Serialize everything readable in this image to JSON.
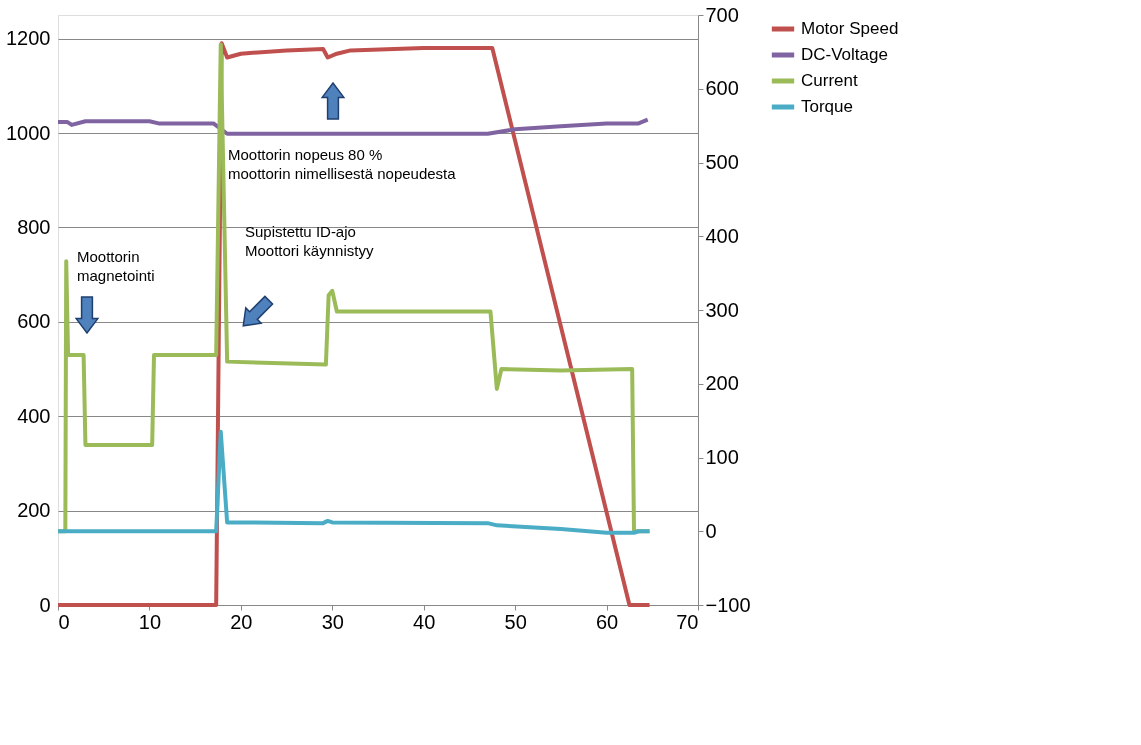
{
  "chart_data": {
    "type": "line",
    "xlim": [
      0,
      70
    ],
    "xticks": [
      0,
      10,
      20,
      30,
      40,
      50,
      60,
      70
    ],
    "ylim": [
      0,
      1250
    ],
    "yticks": [
      0,
      200,
      400,
      600,
      800,
      1000,
      1200
    ],
    "y2lim": [
      -100,
      700
    ],
    "y2ticks": [
      -100,
      0,
      100,
      200,
      300,
      400,
      500,
      600,
      700
    ],
    "grid": "y",
    "legend": "right",
    "line_style": "solid",
    "marker": "none",
    "series": [
      {
        "name": "Motor Speed",
        "color": "#c0504d",
        "x": [
          0,
          17.3,
          17.9,
          18.5,
          20,
          25,
          29,
          29.5,
          30.5,
          32,
          40,
          47.5,
          62.5,
          64.7
        ],
        "values": [
          0,
          0,
          1190,
          1160,
          1168,
          1175,
          1178,
          1160,
          1168,
          1175,
          1180,
          1180,
          0,
          0
        ]
      },
      {
        "name": "DC-Voltage",
        "color": "#8064a2",
        "axis": "y2",
        "x": [
          0,
          1,
          1.5,
          3,
          10,
          11,
          17,
          18.5,
          47,
          50,
          55,
          60,
          63.5,
          64.5
        ],
        "values": [
          555,
          555,
          551,
          556,
          556,
          553,
          553,
          539,
          539,
          545,
          549,
          553,
          553,
          558
        ]
      },
      {
        "name": "Current",
        "color": "#9bbb59",
        "axis": "y2",
        "x": [
          0,
          0.8,
          0.9,
          1.1,
          2.8,
          3,
          10.3,
          10.5,
          17.3,
          17.8,
          18.5,
          29.3,
          29.6,
          30,
          30.5,
          47.3,
          48,
          48.5,
          55,
          62.8,
          63,
          64.7
        ],
        "values": [
          0,
          0,
          366,
          239,
          239,
          117,
          117,
          239,
          239,
          660,
          230,
          226,
          320,
          326,
          298,
          298,
          193,
          220,
          218,
          220,
          0,
          0
        ]
      },
      {
        "name": "Torque",
        "color": "#4bacc6",
        "axis": "y2",
        "x": [
          0,
          17.3,
          17.8,
          18.5,
          29,
          29.5,
          30,
          47,
          48,
          55,
          60,
          63,
          63.5,
          64.7
        ],
        "values": [
          0,
          0,
          135,
          12,
          11,
          14,
          12,
          11,
          8,
          3,
          -2,
          -2,
          0,
          0
        ]
      }
    ],
    "annotations": [
      "Moottorin\nmagnetointi",
      "Supistettu ID-ajo\nMoottori käynnistyy",
      "Moottorin nopeus 80 %\nmoottorin nimellisestä nopeudesta"
    ]
  }
}
